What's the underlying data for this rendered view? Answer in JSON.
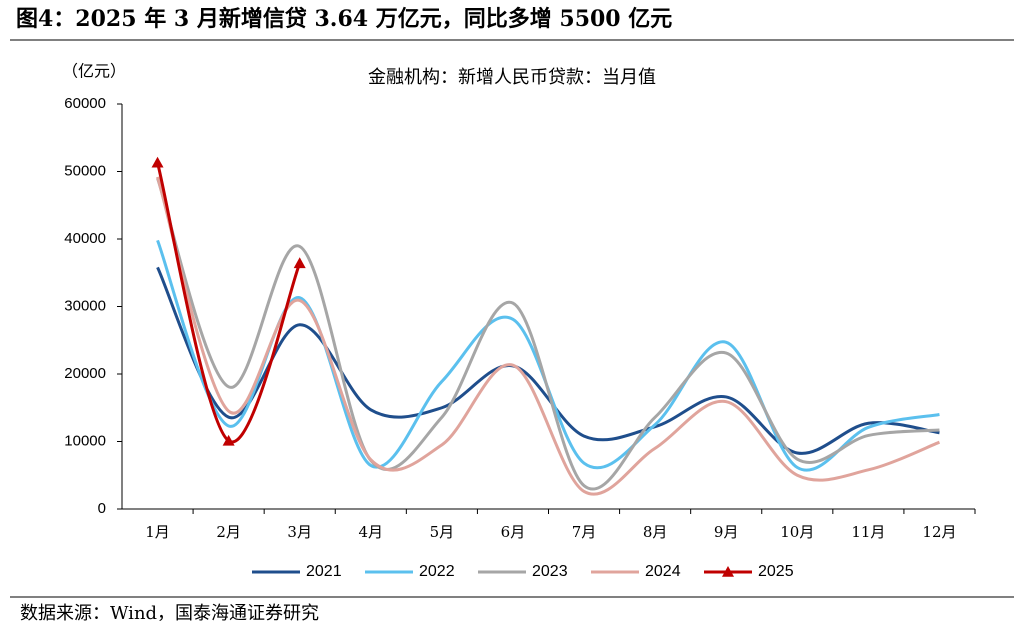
{
  "chart_data": {
    "type": "line",
    "title": "图4：2025 年 3 月新增信贷 3.64 万亿元，同比多增 5500 亿元",
    "subtitle": "金融机构：新增人民币贷款：当月值",
    "y_label": "（亿元）",
    "source": "数据来源：Wind，国泰海通证券研究",
    "categories": [
      "1月",
      "2月",
      "3月",
      "4月",
      "5月",
      "6月",
      "7月",
      "8月",
      "9月",
      "10月",
      "11月",
      "12月"
    ],
    "series": [
      {
        "name": "2021",
        "color": "#1f4e8c",
        "values": [
          35800,
          13600,
          27300,
          14700,
          15000,
          21200,
          10800,
          12200,
          16600,
          8300,
          12700,
          11300
        ]
      },
      {
        "name": "2022",
        "color": "#5bc0ee",
        "values": [
          39800,
          12300,
          31300,
          6450,
          18900,
          28100,
          6790,
          12500,
          24700,
          6150,
          12100,
          14000
        ]
      },
      {
        "name": "2023",
        "color": "#a6a6a6",
        "values": [
          49000,
          18100,
          38900,
          7190,
          13600,
          30500,
          3460,
          13600,
          23100,
          7380,
          10900,
          11700
        ]
      },
      {
        "name": "2024",
        "color": "#e0a49c",
        "values": [
          49200,
          14500,
          30900,
          7300,
          9500,
          21300,
          2600,
          9000,
          15900,
          5000,
          5800,
          9900
        ]
      },
      {
        "name": "2025",
        "color": "#c00000",
        "marker": "triangle",
        "values": [
          51300,
          10100,
          36400,
          null,
          null,
          null,
          null,
          null,
          null,
          null,
          null,
          null
        ]
      }
    ],
    "ylim": [
      0,
      60000
    ],
    "yticks": [
      0,
      10000,
      20000,
      30000,
      40000,
      50000,
      60000
    ],
    "legend": "bottom"
  }
}
